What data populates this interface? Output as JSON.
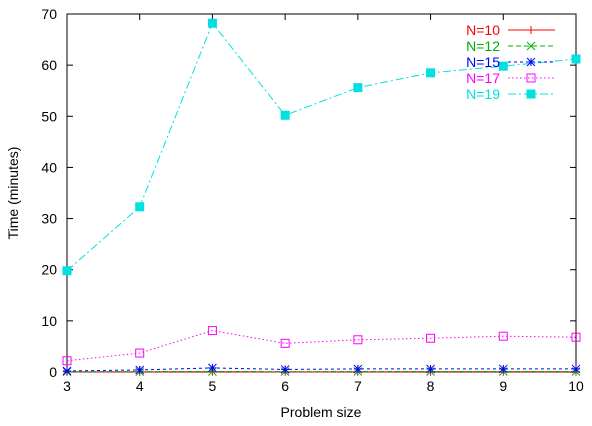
{
  "chart_data": {
    "type": "line",
    "title": "",
    "xlabel": "Problem size",
    "ylabel": "Time (minutes)",
    "xlim": [
      3,
      10
    ],
    "ylim": [
      0,
      70
    ],
    "x_ticks": [
      "3",
      "4",
      "5",
      "6",
      "7",
      "8",
      "9",
      "10"
    ],
    "y_ticks": [
      "0",
      "10",
      "20",
      "30",
      "40",
      "50",
      "60",
      "70"
    ],
    "grid": false,
    "legend": "top-right",
    "x": [
      3,
      4,
      5,
      6,
      7,
      8,
      9,
      10
    ],
    "series": [
      {
        "name": "N=10",
        "color": "#ff0000",
        "marker": "plus",
        "dash": "solid",
        "values": [
          0.02,
          0.03,
          0.04,
          0.03,
          0.03,
          0.04,
          0.04,
          0.04
        ]
      },
      {
        "name": "N=12",
        "color": "#00b000",
        "marker": "cross",
        "dash": "dashed",
        "values": [
          0.05,
          0.08,
          0.1,
          0.08,
          0.09,
          0.1,
          0.1,
          0.1
        ]
      },
      {
        "name": "N=15",
        "color": "#0000ff",
        "marker": "star",
        "dash": "shortdash",
        "values": [
          0.2,
          0.4,
          0.8,
          0.5,
          0.6,
          0.6,
          0.6,
          0.6
        ]
      },
      {
        "name": "N=17",
        "color": "#ff00ff",
        "marker": "open-square",
        "dash": "dotted",
        "values": [
          2.2,
          3.7,
          8.1,
          5.6,
          6.3,
          6.6,
          7.0,
          6.8
        ]
      },
      {
        "name": "N=19",
        "color": "#00e0e0",
        "marker": "filled-square",
        "dash": "dashdot",
        "values": [
          19.8,
          32.3,
          68.2,
          50.2,
          55.6,
          58.5,
          59.8,
          61.2
        ]
      }
    ]
  }
}
